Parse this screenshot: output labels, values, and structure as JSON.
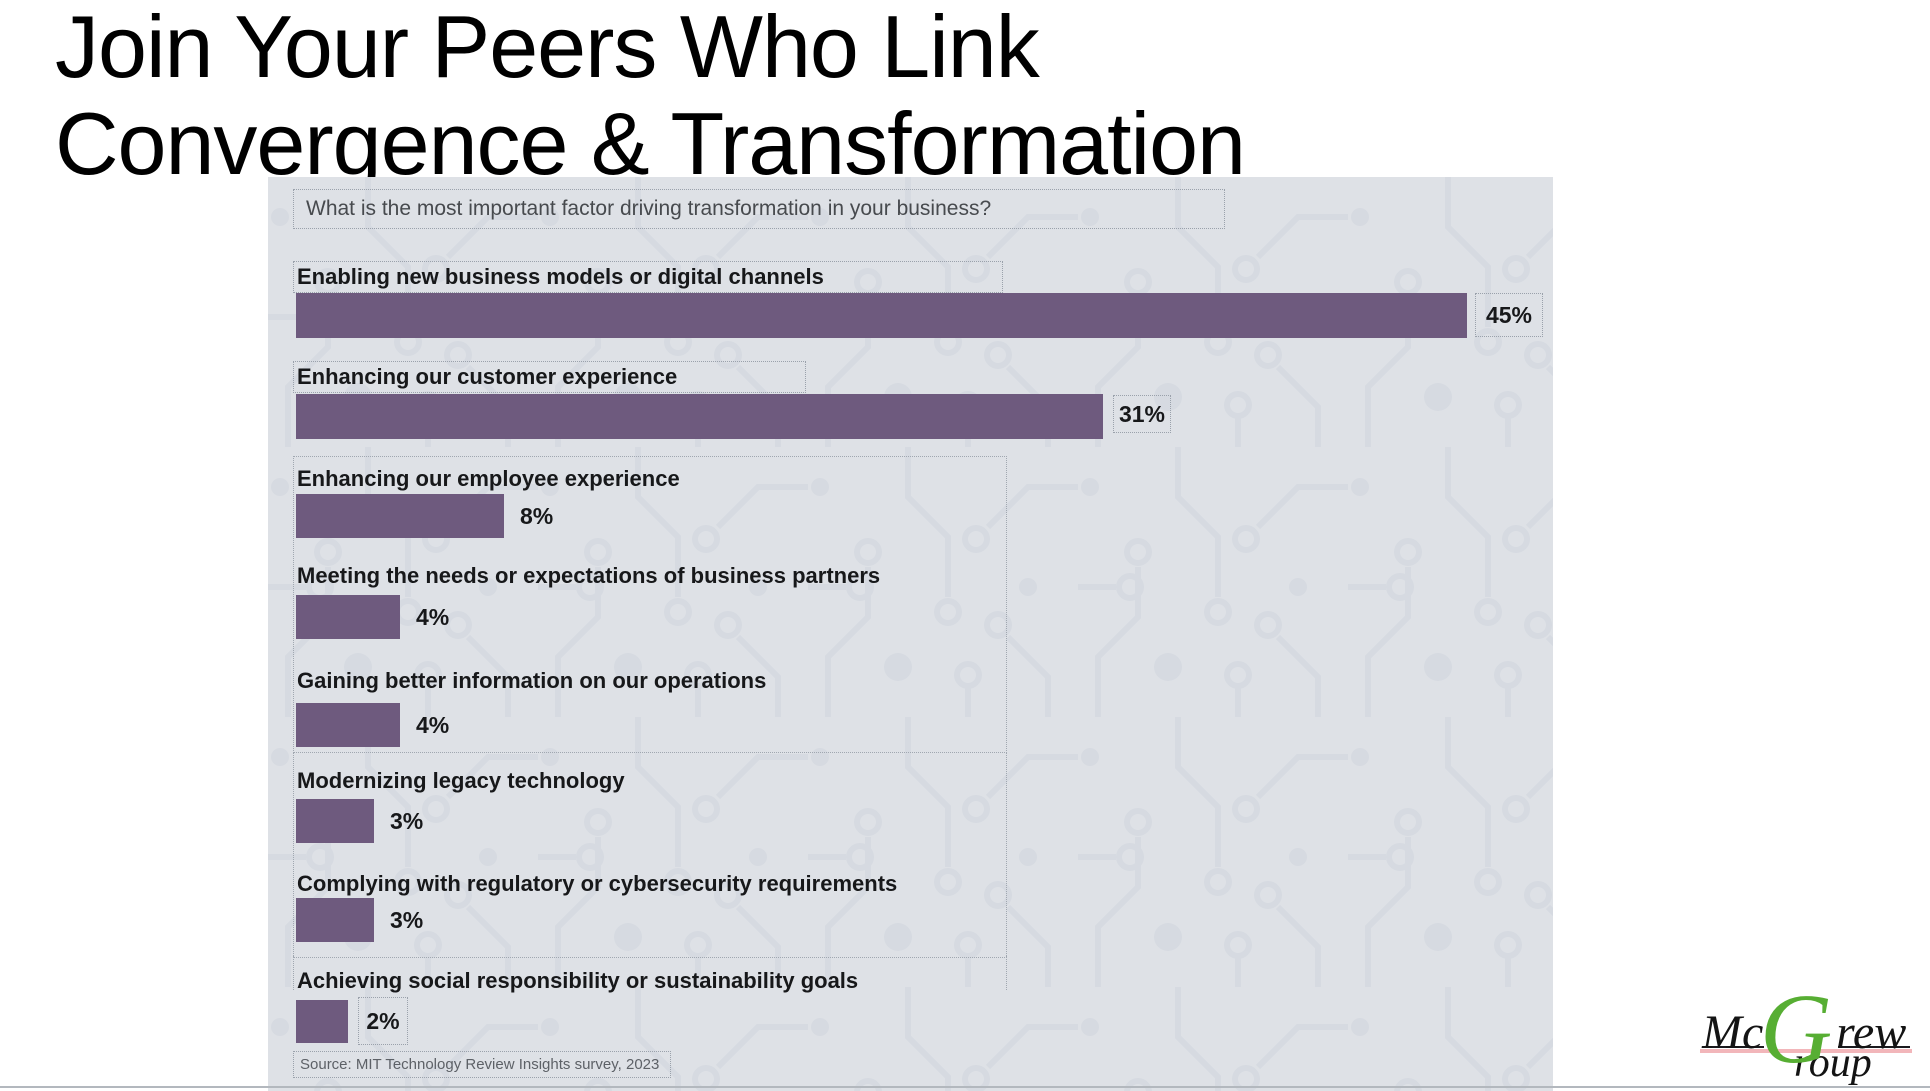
{
  "title": {
    "line1": "Join Your Peers Who Link",
    "line2": "Convergence & Transformation"
  },
  "chart": {
    "question": "What is the most important factor driving transformation in your business?",
    "source": "Source: MIT Technology Review Insights survey, 2023"
  },
  "chart_data": {
    "type": "bar",
    "orientation": "horizontal",
    "title": "What is the most important factor driving transformation in your business?",
    "categories": [
      "Enabling new business models or digital channels",
      "Enhancing our customer experience",
      "Enhancing our employee experience",
      "Meeting the needs or expectations of business partners",
      "Gaining better information on our operations",
      "Modernizing legacy technology",
      "Complying with regulatory or cybersecurity requirements",
      "Achieving social responsibility or sustainability goals"
    ],
    "values": [
      45,
      31,
      8,
      4,
      4,
      3,
      3,
      2
    ],
    "value_labels": [
      "45%",
      "31%",
      "8%",
      "4%",
      "4%",
      "3%",
      "3%",
      "2%"
    ],
    "unit": "percent",
    "xlim": [
      0,
      45
    ],
    "grid": false,
    "legend": false,
    "bar_color": "#6e5a7e",
    "source": "Source: MIT Technology Review Insights survey, 2023"
  },
  "logo": {
    "mc": "Mc",
    "g": "G",
    "rew": "rew",
    "roup": "roup",
    "full_name": "McGrew Group",
    "green": "#57ae33",
    "pink_underline": "#f2b6ba"
  },
  "colors": {
    "panel_background": "#dee1e6",
    "circuit_pattern": "#cfd5dd",
    "bar": "#6e5a7e",
    "dotted_border": "#9aa1ab",
    "title_text": "#000000",
    "label_text": "#17181a",
    "question_text": "#474a4e",
    "source_text": "#5d6167"
  }
}
